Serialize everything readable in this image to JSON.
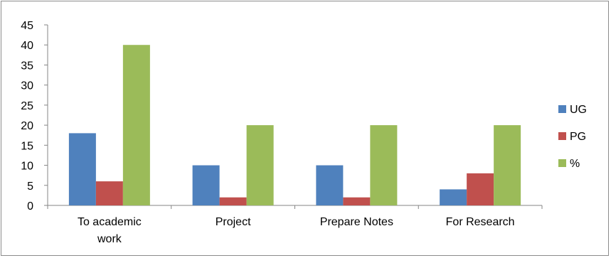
{
  "chart_data": {
    "type": "bar",
    "categories": [
      [
        "To academic",
        "work"
      ],
      [
        "Project"
      ],
      [
        "Prepare Notes"
      ],
      [
        "For Research"
      ]
    ],
    "series": [
      {
        "name": "UG",
        "values": [
          18,
          10,
          10,
          4
        ],
        "color": "#4f81bd"
      },
      {
        "name": "PG",
        "values": [
          6,
          2,
          2,
          8
        ],
        "color": "#c0504d"
      },
      {
        "name": "%",
        "values": [
          40,
          20,
          20,
          20
        ],
        "color": "#9bbb59"
      }
    ],
    "title": "",
    "xlabel": "",
    "ylabel": "",
    "ylim": [
      0,
      45
    ],
    "yticks": [
      "0",
      "5",
      "10",
      "15",
      "20",
      "25",
      "30",
      "35",
      "40",
      "45"
    ],
    "grid": false,
    "legend": "right"
  }
}
